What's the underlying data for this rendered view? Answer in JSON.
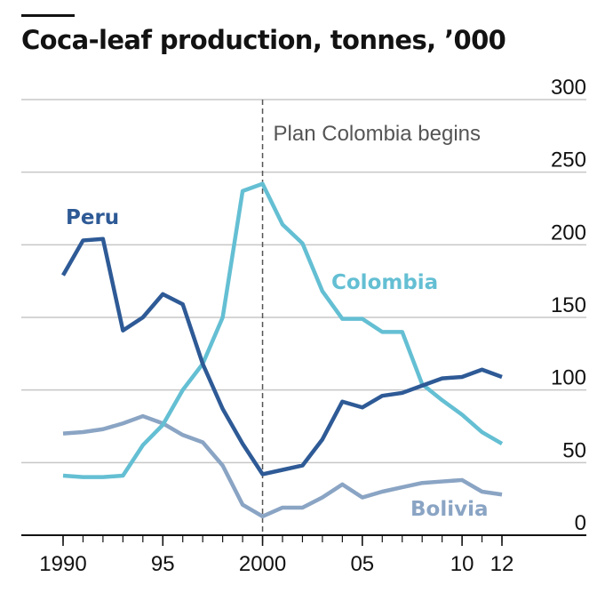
{
  "title": "Coca-leaf production, tonnes, ’000",
  "chart_data": {
    "type": "line",
    "title": "Coca-leaf production, tonnes, ’000",
    "xlabel": "",
    "ylabel": "",
    "xlim": [
      1990,
      2012
    ],
    "ylim": [
      0,
      300
    ],
    "yticks": [
      0,
      50,
      100,
      150,
      200,
      250,
      300
    ],
    "xticks": [
      {
        "value": 1990,
        "label": "1990"
      },
      {
        "value": 1995,
        "label": "95"
      },
      {
        "value": 2000,
        "label": "2000"
      },
      {
        "value": 2005,
        "label": "05"
      },
      {
        "value": 2010,
        "label": "10"
      },
      {
        "value": 2012,
        "label": "12"
      }
    ],
    "grid": "horizontal",
    "annotation": {
      "x": 2000,
      "text": "Plan Colombia begins"
    },
    "x": [
      1990,
      1991,
      1992,
      1993,
      1994,
      1995,
      1996,
      1997,
      1998,
      1999,
      2000,
      2001,
      2002,
      2003,
      2004,
      2005,
      2006,
      2007,
      2008,
      2009,
      2010,
      2011,
      2012
    ],
    "series": [
      {
        "name": "Peru",
        "color": "#2e5a96",
        "values": [
          179,
          203,
          204,
          141,
          150,
          166,
          159,
          118,
          87,
          63,
          42,
          45,
          48,
          66,
          92,
          88,
          96,
          98,
          103,
          108,
          109,
          114,
          109
        ]
      },
      {
        "name": "Colombia",
        "color": "#64bfd3",
        "values": [
          41,
          40,
          40,
          41,
          62,
          76,
          100,
          118,
          150,
          237,
          242,
          214,
          201,
          168,
          149,
          149,
          140,
          140,
          104,
          93,
          83,
          71,
          63
        ]
      },
      {
        "name": "Bolivia",
        "color": "#8aa4c4",
        "values": [
          70,
          71,
          73,
          77,
          82,
          77,
          69,
          64,
          48,
          21,
          13,
          19,
          19,
          26,
          35,
          26,
          30,
          33,
          36,
          37,
          38,
          30,
          28
        ]
      }
    ]
  }
}
